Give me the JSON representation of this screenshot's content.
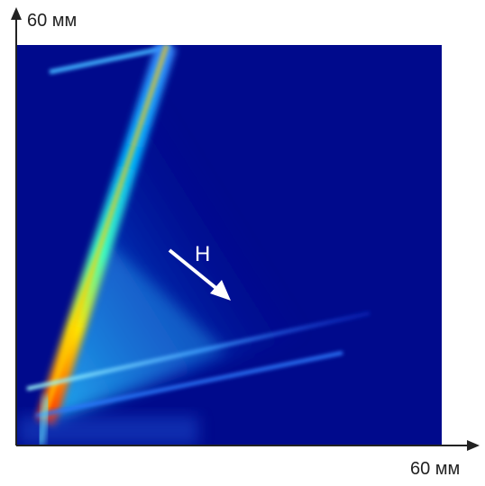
{
  "axes": {
    "y_label": "60 мм",
    "x_label": "60 мм"
  },
  "annotation": {
    "label": "H"
  }
}
